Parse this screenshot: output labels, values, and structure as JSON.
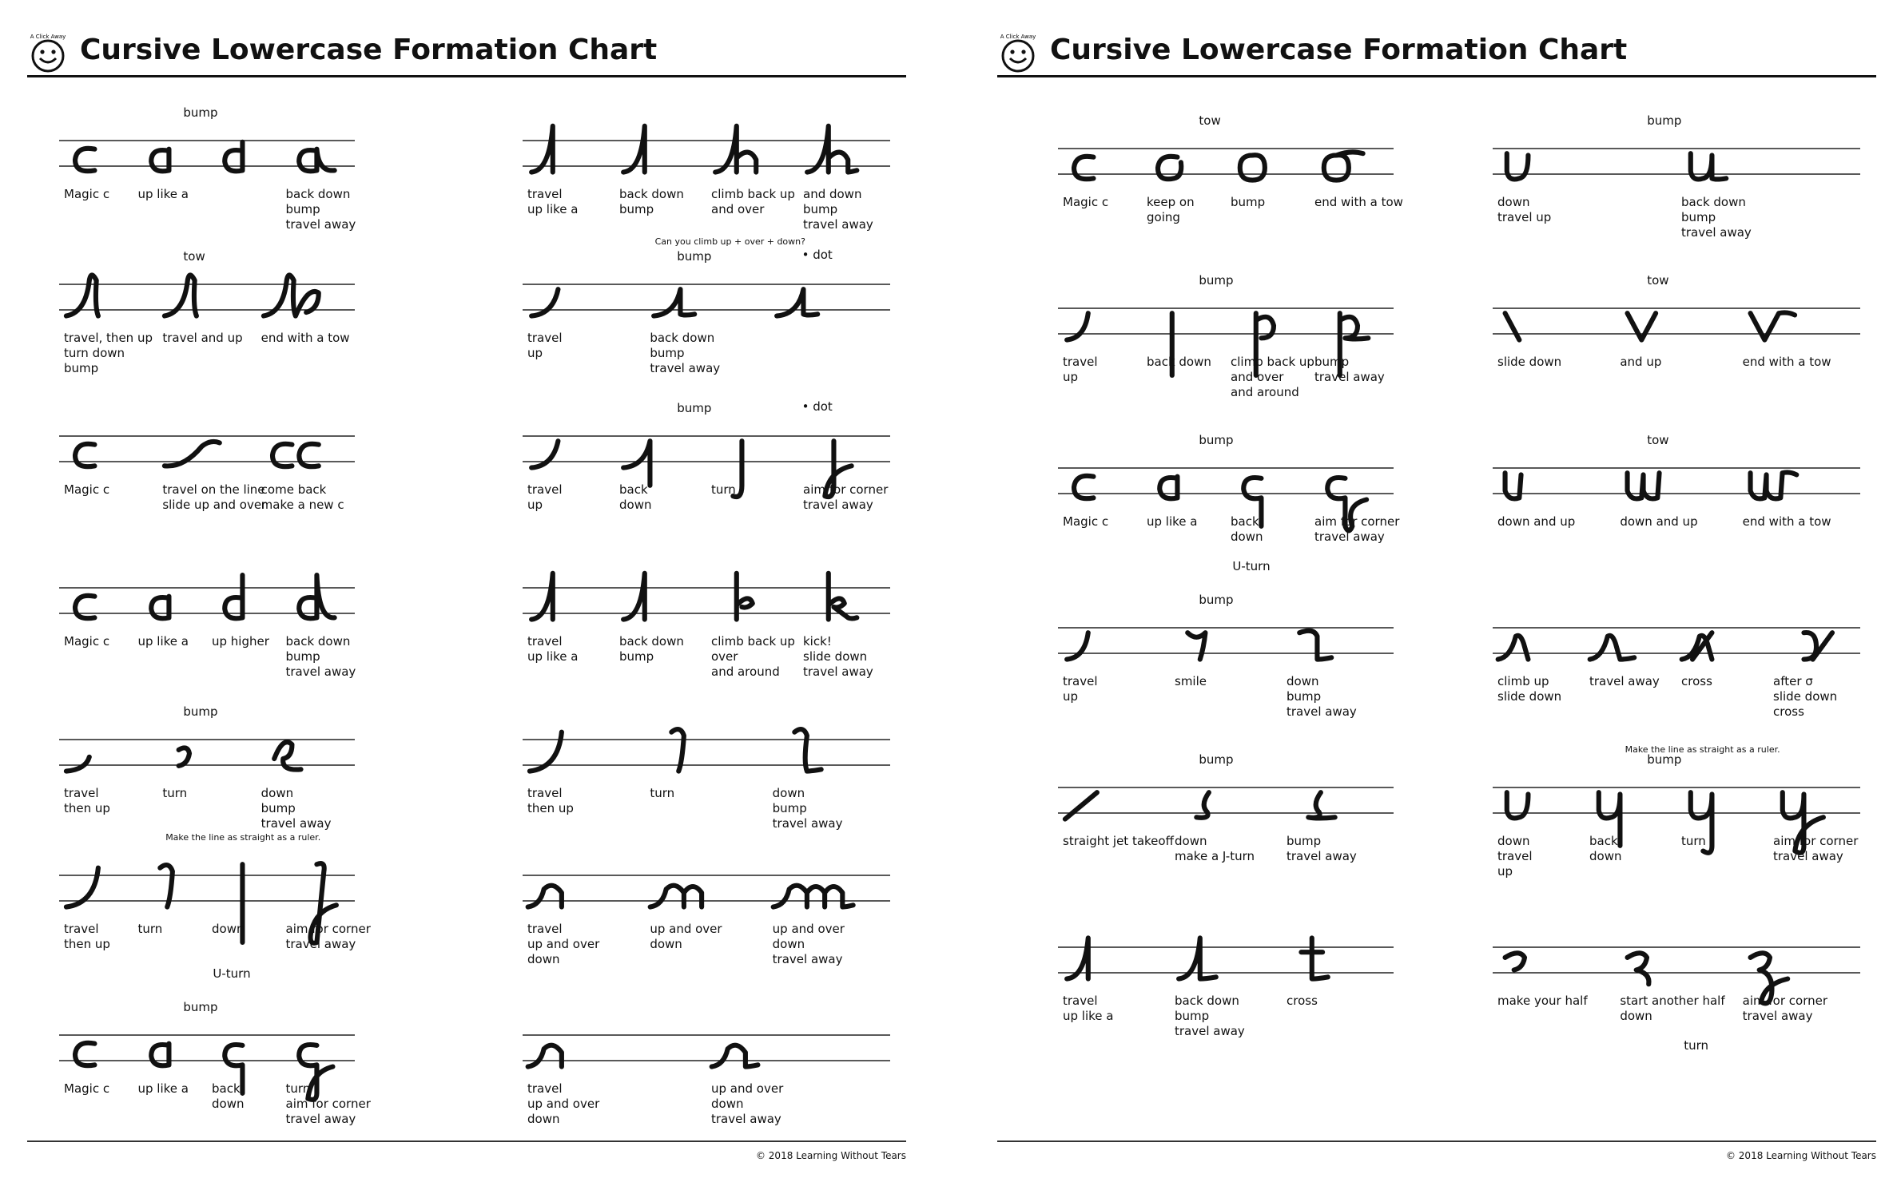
{
  "ink_color": "#111111",
  "guide_color": "#222222",
  "left_page": {
    "title": "Cursive Lowercase Formation Chart",
    "logo_text": "A Click Away",
    "copyright": "© 2018 Learning Without Tears",
    "groups": [
      {
        "id": "c-a",
        "steps": [
          {
            "caption": [
              "Magic c"
            ]
          },
          {
            "caption": [
              "up like a"
            ],
            "mark": "bump"
          },
          {
            "caption": [
              ""
            ]
          },
          {
            "caption": [
              "back down",
              "bump",
              "travel away"
            ]
          }
        ],
        "top_label": "bump"
      },
      {
        "id": "h",
        "steps": [
          {
            "caption": [
              "travel",
              "up like a"
            ]
          },
          {
            "caption": [
              "back down",
              "bump"
            ]
          },
          {
            "caption": [
              "climb back up",
              "and over"
            ]
          },
          {
            "caption": [
              "and down",
              "bump",
              "travel away"
            ]
          }
        ],
        "note": "Can you climb up + over + down?"
      },
      {
        "id": "l-b",
        "steps": [
          {
            "caption": [
              "travel, then up",
              "turn down",
              "bump"
            ]
          },
          {
            "caption": [
              "travel and up"
            ]
          },
          {
            "caption": [
              "end with a tow"
            ]
          }
        ],
        "top_label": "tow"
      },
      {
        "id": "i",
        "steps": [
          {
            "caption": [
              "travel",
              "up"
            ]
          },
          {
            "caption": [
              "back down",
              "bump",
              "travel away"
            ]
          },
          {
            "caption": [
              ""
            ]
          }
        ],
        "top_label": "bump",
        "dot_label": "• dot"
      },
      {
        "id": "c-cc",
        "steps": [
          {
            "caption": [
              "Magic c"
            ]
          },
          {
            "caption": [
              "travel on the line",
              "slide up and over"
            ]
          },
          {
            "caption": [
              "come back",
              "make a new c"
            ]
          }
        ]
      },
      {
        "id": "j",
        "steps": [
          {
            "caption": [
              "travel",
              "up"
            ]
          },
          {
            "caption": [
              "back",
              "down"
            ]
          },
          {
            "caption": [
              "turn"
            ]
          },
          {
            "caption": [
              "aim for corner",
              "travel away"
            ]
          }
        ],
        "top_label": "bump",
        "dot_label": "• dot"
      },
      {
        "id": "d",
        "steps": [
          {
            "caption": [
              "Magic c"
            ]
          },
          {
            "caption": [
              "up like a"
            ]
          },
          {
            "caption": [
              "up higher"
            ]
          },
          {
            "caption": [
              "back down",
              "bump",
              "travel away"
            ]
          }
        ]
      },
      {
        "id": "k",
        "steps": [
          {
            "caption": [
              "travel",
              "up like a"
            ]
          },
          {
            "caption": [
              "back down",
              "bump"
            ]
          },
          {
            "caption": [
              "climb back up",
              "over",
              "and around"
            ]
          },
          {
            "caption": [
              "kick!",
              "slide down",
              "travel away"
            ]
          }
        ]
      },
      {
        "id": "e",
        "steps": [
          {
            "caption": [
              "travel",
              "then up"
            ]
          },
          {
            "caption": [
              "turn"
            ]
          },
          {
            "caption": [
              "down",
              "bump",
              "travel away"
            ]
          }
        ],
        "top_label": "bump"
      },
      {
        "id": "l",
        "steps": [
          {
            "caption": [
              "travel",
              "then up"
            ]
          },
          {
            "caption": [
              "turn"
            ]
          },
          {
            "caption": [
              "down",
              "bump",
              "travel away"
            ]
          }
        ]
      },
      {
        "id": "f",
        "steps": [
          {
            "caption": [
              "travel",
              "then up"
            ]
          },
          {
            "caption": [
              "turn"
            ]
          },
          {
            "caption": [
              "down"
            ]
          },
          {
            "caption": [
              "aim for corner",
              "travel away"
            ]
          }
        ],
        "note": "Make the line as straight as a ruler.",
        "u_label": "U-turn"
      },
      {
        "id": "m",
        "steps": [
          {
            "caption": [
              "travel",
              "up and over",
              "down"
            ]
          },
          {
            "caption": [
              "up and over",
              "down"
            ]
          },
          {
            "caption": [
              "up and over",
              "down",
              "travel away"
            ]
          }
        ]
      },
      {
        "id": "g",
        "steps": [
          {
            "caption": [
              "Magic c"
            ]
          },
          {
            "caption": [
              "up like a"
            ]
          },
          {
            "caption": [
              "back",
              "down"
            ]
          },
          {
            "caption": [
              "turn",
              "aim for corner",
              "travel away"
            ]
          }
        ],
        "top_label": "bump"
      },
      {
        "id": "n",
        "steps": [
          {
            "caption": [
              "travel",
              "up and over",
              "down"
            ]
          },
          {
            "caption": [
              "up and over",
              "down",
              "travel away"
            ]
          }
        ]
      }
    ]
  },
  "right_page": {
    "title": "Cursive Lowercase Formation Chart",
    "logo_text": "A Click Away",
    "copyright": "© 2018 Learning Without Tears",
    "groups": [
      {
        "id": "o",
        "steps": [
          {
            "caption": [
              "Magic c"
            ]
          },
          {
            "caption": [
              "keep on",
              "going"
            ]
          },
          {
            "caption": [
              "bump"
            ]
          },
          {
            "caption": [
              "end with a tow"
            ]
          }
        ],
        "top_label": "tow"
      },
      {
        "id": "u",
        "steps": [
          {
            "caption": [
              "down",
              "travel up"
            ]
          },
          {
            "caption": [
              "back down",
              "bump",
              "travel away"
            ]
          }
        ],
        "top_label": "bump"
      },
      {
        "id": "p",
        "steps": [
          {
            "caption": [
              "travel",
              "up"
            ]
          },
          {
            "caption": [
              "back down"
            ]
          },
          {
            "caption": [
              "climb back up",
              "and over",
              "and around"
            ]
          },
          {
            "caption": [
              "bump",
              "travel away"
            ]
          }
        ],
        "top_label": "bump"
      },
      {
        "id": "v",
        "steps": [
          {
            "caption": [
              "slide down"
            ]
          },
          {
            "caption": [
              "and up"
            ]
          },
          {
            "caption": [
              "end with a tow"
            ]
          }
        ],
        "top_label": "tow"
      },
      {
        "id": "q",
        "steps": [
          {
            "caption": [
              "Magic c"
            ]
          },
          {
            "caption": [
              "up like a"
            ]
          },
          {
            "caption": [
              "back",
              "down"
            ]
          },
          {
            "caption": [
              "aim for corner",
              "travel away"
            ]
          }
        ],
        "top_label": "bump",
        "u_label": "U-turn"
      },
      {
        "id": "w",
        "steps": [
          {
            "caption": [
              "down and up"
            ]
          },
          {
            "caption": [
              "down and up"
            ]
          },
          {
            "caption": [
              "end with a tow"
            ]
          }
        ],
        "top_label": "tow"
      },
      {
        "id": "r",
        "steps": [
          {
            "caption": [
              "travel",
              "up"
            ]
          },
          {
            "caption": [
              "smile"
            ]
          },
          {
            "caption": [
              "down",
              "bump",
              "travel away"
            ]
          }
        ],
        "top_label": "bump"
      },
      {
        "id": "x",
        "steps": [
          {
            "caption": [
              "climb up",
              "slide down"
            ]
          },
          {
            "caption": [
              "travel away"
            ]
          },
          {
            "caption": [
              "cross"
            ]
          },
          {
            "caption": [
              "after σ",
              "slide down",
              "cross"
            ]
          }
        ]
      },
      {
        "id": "s",
        "steps": [
          {
            "caption": [
              "straight jet takeoff"
            ]
          },
          {
            "caption": [
              "down",
              "make a J-turn"
            ]
          },
          {
            "caption": [
              "bump",
              "travel away"
            ]
          }
        ],
        "top_label": "bump"
      },
      {
        "id": "y",
        "steps": [
          {
            "caption": [
              "down",
              "travel",
              "up"
            ]
          },
          {
            "caption": [
              "back",
              "down"
            ]
          },
          {
            "caption": [
              "turn"
            ]
          },
          {
            "caption": [
              "aim for corner",
              "travel away"
            ]
          }
        ],
        "top_label": "bump",
        "note": "Make the line as straight as a ruler."
      },
      {
        "id": "t",
        "steps": [
          {
            "caption": [
              "travel",
              "up like a"
            ]
          },
          {
            "caption": [
              "back down",
              "bump",
              "travel away"
            ]
          },
          {
            "caption": [
              "cross"
            ]
          }
        ]
      },
      {
        "id": "z",
        "steps": [
          {
            "caption": [
              "make your half"
            ]
          },
          {
            "caption": [
              "start another half",
              "down"
            ]
          },
          {
            "caption": [
              "aim for corner",
              "travel away"
            ]
          }
        ],
        "u_label": "turn"
      }
    ]
  }
}
